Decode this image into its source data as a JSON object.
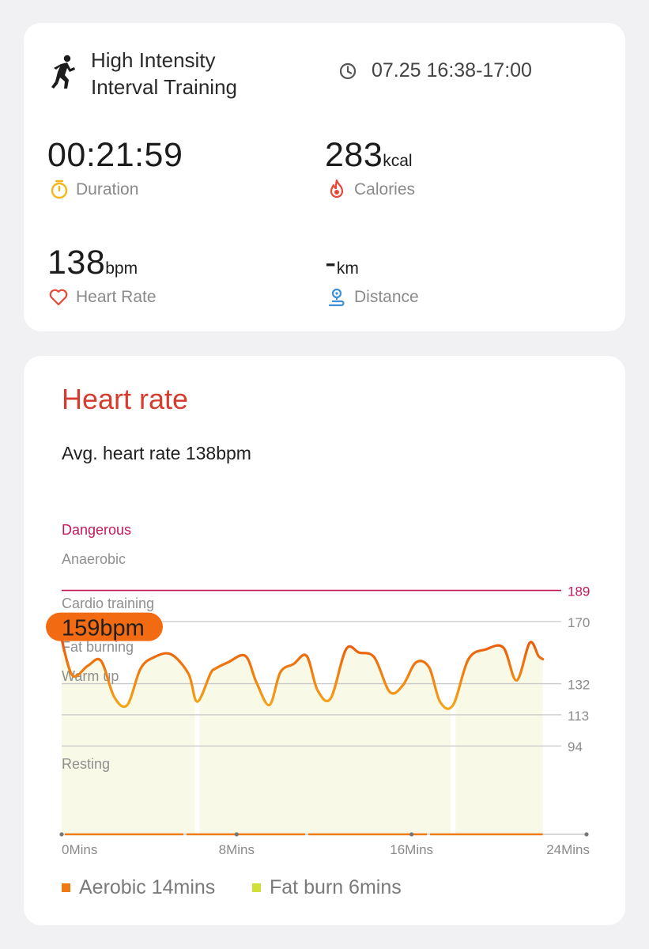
{
  "workout": {
    "title_line1": "High Intensity",
    "title_line2": "Interval Training",
    "time_range": "07.25 16:38-17:00",
    "runner_icon": "running-person-icon",
    "clock_icon": "clock-icon"
  },
  "stats": {
    "duration": {
      "value": "00:21:59",
      "unit": "",
      "label": "Duration",
      "icon": "stopwatch-icon",
      "icon_color": "#f2b81b"
    },
    "calories": {
      "value": "283",
      "unit": "kcal",
      "label": "Calories",
      "icon": "flame-icon",
      "icon_color": "#e8473a"
    },
    "heart_rate": {
      "value": "138",
      "unit": "bpm",
      "label": "Heart Rate",
      "icon": "heart-icon",
      "icon_color": "#e8473a"
    },
    "distance": {
      "value": "-",
      "unit": "km",
      "label": "Distance",
      "icon": "route-pin-icon",
      "icon_color": "#3d8fd6"
    }
  },
  "heart_rate_card": {
    "title": "Heart rate",
    "avg_text": "Avg. heart rate 138bpm",
    "title_color": "#d43d30"
  },
  "chart_data": {
    "type": "line",
    "x_unit": "Mins",
    "xlim": [
      0,
      24
    ],
    "ylim": [
      40,
      200
    ],
    "x_ticks": [
      "0Mins",
      "8Mins",
      "16Mins",
      "24Mins"
    ],
    "zones": [
      {
        "name": "Dangerous",
        "threshold": 189,
        "color": "#c2185b"
      },
      {
        "name": "Anaerobic",
        "threshold": 170,
        "color": "#9e9e9e"
      },
      {
        "name": "Cardio training",
        "threshold": 132,
        "color": "#9e9e9e"
      },
      {
        "name": "Fat burning",
        "threshold": 113,
        "color": "#9e9e9e"
      },
      {
        "name": "Warm up",
        "threshold": 94,
        "color": "#9e9e9e"
      },
      {
        "name": "Resting",
        "threshold": null,
        "color": "#9e9e9e"
      }
    ],
    "highlight_label": "159bpm",
    "highlight_color": "#f26a12",
    "series": [
      {
        "x": [
          0,
          0.5,
          1.2,
          1.8,
          2.4,
          3.0,
          3.6,
          4.2,
          5.0,
          5.8,
          6.2,
          6.8,
          7.0,
          7.6,
          8.4,
          8.9,
          9.5,
          10.0,
          10.6,
          11.2,
          11.7,
          12.3,
          13.0,
          13.6,
          14.3,
          15.0,
          15.6,
          16.2,
          16.8,
          17.3,
          17.9,
          18.6,
          19.4,
          20.2,
          20.8,
          21.4,
          21.8,
          22.0
        ],
        "y": [
          159,
          137,
          143,
          146,
          124,
          119,
          141,
          148,
          150,
          138,
          121,
          138,
          141,
          145,
          149,
          133,
          119,
          139,
          144,
          149,
          128,
          123,
          153,
          151,
          148,
          127,
          131,
          145,
          142,
          121,
          119,
          147,
          153,
          154,
          134,
          157,
          149,
          147
        ]
      }
    ],
    "legend": [
      {
        "label": "Aerobic 14mins",
        "color": "#f07a12"
      },
      {
        "label": "Fat burn 6mins",
        "color": "#cfe03a"
      }
    ]
  }
}
